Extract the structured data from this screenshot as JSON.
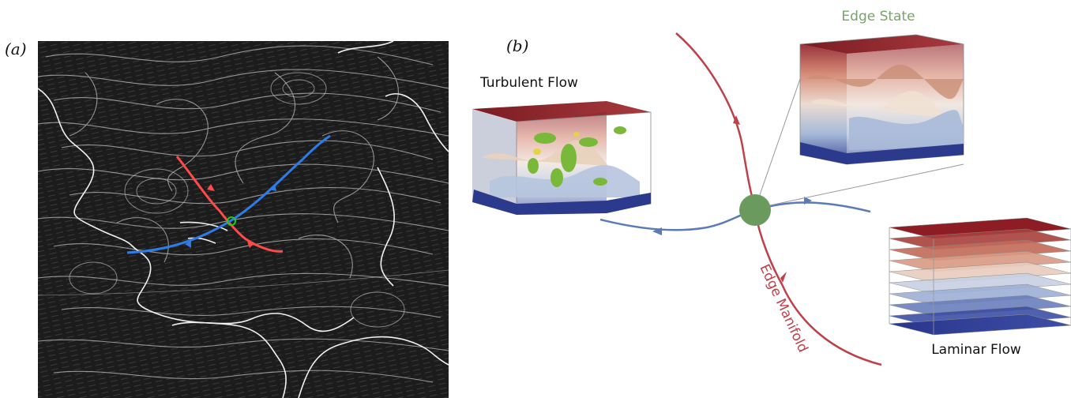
{
  "panels": {
    "a": {
      "label": "(a)"
    },
    "b": {
      "label": "(b)"
    }
  },
  "diagram": {
    "edge_state_label": "Edge State",
    "turbulent_label": "Turbulent Flow",
    "laminar_label": "Laminar Flow",
    "edge_manifold_label": "Edge Manifold"
  },
  "colors": {
    "stable_manifold": "#c0404a",
    "unstable_manifold": "#5a7ab8",
    "edge_state_node": "#6b9a5e",
    "edge_state_text": "#7aa26a",
    "map_red": "#ff4a4a",
    "map_blue": "#2e7ce8",
    "map_marker": "#22cc22"
  }
}
